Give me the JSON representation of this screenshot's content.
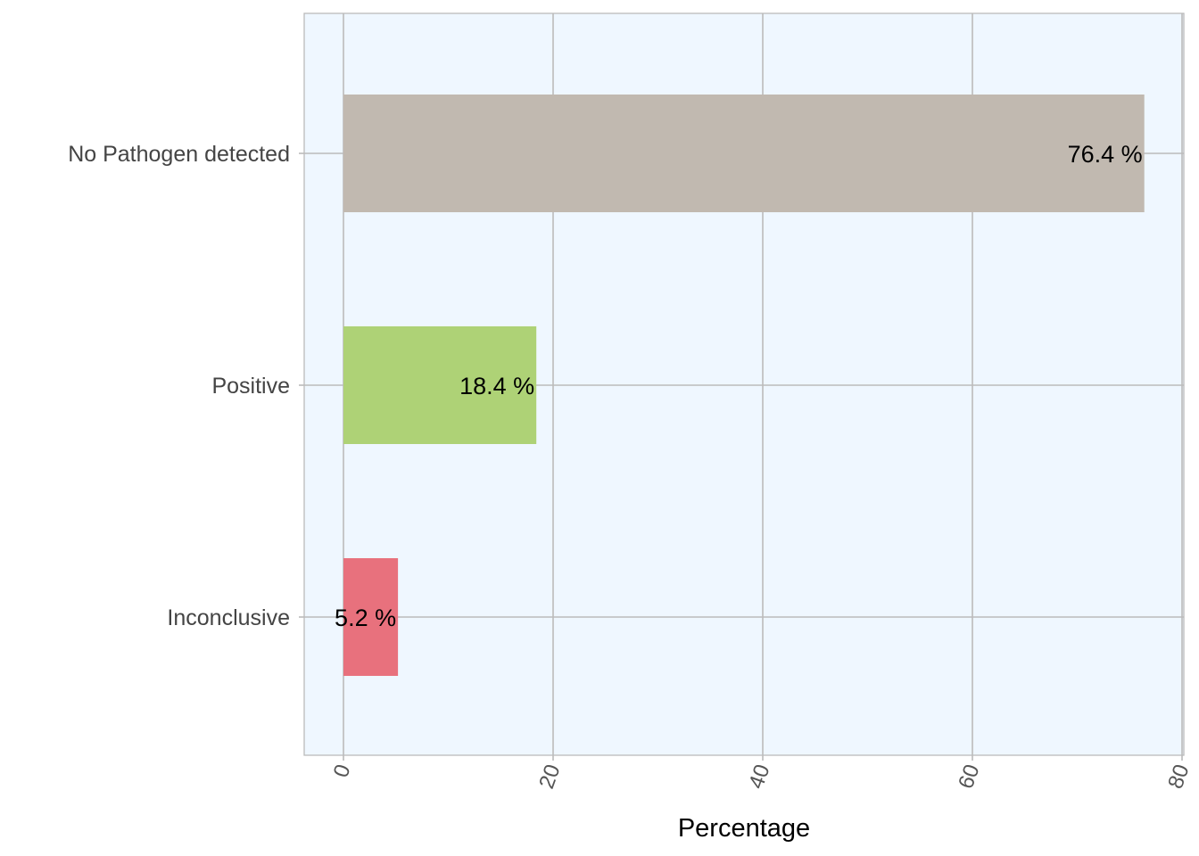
{
  "chart_data": {
    "type": "bar",
    "orientation": "horizontal",
    "title": "",
    "xlabel": "Percentage",
    "ylabel": "",
    "categories": [
      "No Pathogen detected",
      "Positive",
      "Inconclusive"
    ],
    "values": [
      76.4,
      18.4,
      5.2
    ],
    "data_labels": [
      "76.4 %",
      "18.4 %",
      "5.2 %"
    ],
    "colors": [
      "#c1b9b0",
      "#aed276",
      "#e8717d"
    ],
    "xlim": [
      0,
      80
    ],
    "xticks": [
      0,
      20,
      40,
      60,
      80
    ],
    "xtick_labels": [
      "0",
      "20",
      "40",
      "60",
      "80"
    ],
    "grid": true,
    "legend": "none",
    "panel_background": "#eff7ff",
    "grid_color": "#bbbbbb"
  }
}
